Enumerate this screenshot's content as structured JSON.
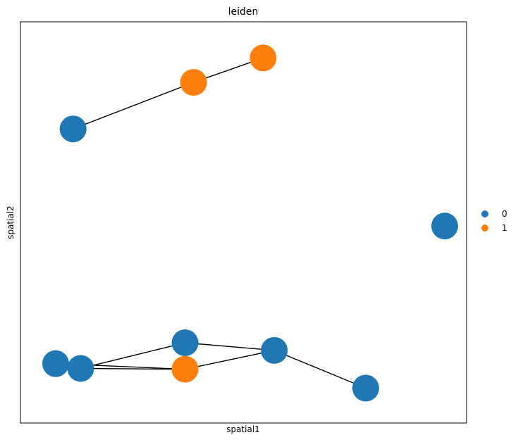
{
  "chart_data": {
    "type": "scatter",
    "title": "leiden",
    "xlabel": "spatial1",
    "ylabel": "spatial2",
    "xlim": [
      0,
      100
    ],
    "ylim": [
      0,
      100
    ],
    "grid": false,
    "legend_position": "right",
    "xticks": [],
    "yticks": [],
    "series": [
      {
        "name": "0",
        "color": "#1f77b4"
      },
      {
        "name": "1",
        "color": "#ff7f0e"
      }
    ],
    "points": [
      {
        "id": 0,
        "x": 11.8,
        "y": 73.3,
        "cluster": "0"
      },
      {
        "id": 1,
        "x": 38.8,
        "y": 84.9,
        "cluster": "1"
      },
      {
        "id": 2,
        "x": 54.4,
        "y": 91.0,
        "cluster": "1"
      },
      {
        "id": 3,
        "x": 95.1,
        "y": 49.1,
        "cluster": "0"
      },
      {
        "id": 4,
        "x": 36.9,
        "y": 20.0,
        "cluster": "0"
      },
      {
        "id": 5,
        "x": 56.9,
        "y": 18.1,
        "cluster": "0"
      },
      {
        "id": 6,
        "x": 7.9,
        "y": 14.8,
        "cluster": "0"
      },
      {
        "id": 7,
        "x": 13.5,
        "y": 13.6,
        "cluster": "0"
      },
      {
        "id": 8,
        "x": 36.9,
        "y": 13.4,
        "cluster": "1"
      },
      {
        "id": 9,
        "x": 77.4,
        "y": 8.7,
        "cluster": "0"
      }
    ],
    "edges": [
      [
        0,
        1
      ],
      [
        1,
        2
      ],
      [
        4,
        7
      ],
      [
        4,
        8
      ],
      [
        4,
        5
      ],
      [
        6,
        7
      ],
      [
        7,
        8
      ],
      [
        6,
        8
      ],
      [
        8,
        5
      ],
      [
        5,
        9
      ]
    ]
  }
}
